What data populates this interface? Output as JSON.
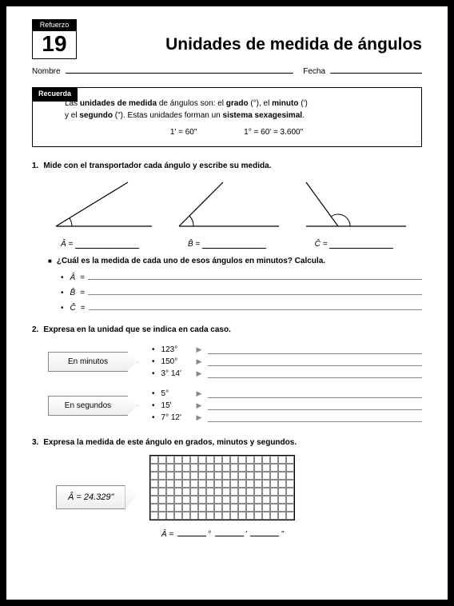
{
  "header": {
    "tab_label": "Refuerzo",
    "number": "19",
    "title": "Unidades de medida de ángulos",
    "name_label": "Nombre",
    "date_label": "Fecha"
  },
  "recuerda": {
    "tab": "Recuerda",
    "line1_a": "Las ",
    "line1_b": "unidades de medida",
    "line1_c": " de ángulos son: el ",
    "line1_d": "grado",
    "line1_e": " (°), el ",
    "line1_f": "minuto",
    "line1_g": " (')",
    "line2_a": "y el ",
    "line2_b": "segundo",
    "line2_c": " (\"). Estas unidades forman un ",
    "line2_d": "sistema sexagesimal",
    "line2_e": ".",
    "formula1": "1' = 60\"",
    "formula2": "1° = 60' = 3.600\""
  },
  "q1": {
    "num": "1.",
    "text": "Mide con el transportador cada ángulo y escribe su medida.",
    "angles": [
      {
        "label": "Â",
        "eq": "="
      },
      {
        "label": "B̂",
        "eq": "="
      },
      {
        "label": "Ĉ",
        "eq": "="
      }
    ],
    "subq": "¿Cuál es la medida de cada uno de esos ángulos en minutos? Calcula.",
    "vars": [
      {
        "v": "Â",
        "eq": "="
      },
      {
        "v": "B̂",
        "eq": "="
      },
      {
        "v": "Ĉ",
        "eq": "="
      }
    ]
  },
  "q2": {
    "num": "2.",
    "text": "Expresa en la unidad que se indica en cada caso.",
    "groups": [
      {
        "label": "En minutos",
        "items": [
          "123°",
          "150°",
          "3° 14'"
        ]
      },
      {
        "label": "En segundos",
        "items": [
          "5°",
          "15'",
          "7° 12'"
        ]
      }
    ]
  },
  "q3": {
    "num": "3.",
    "text": "Expresa la medida de este ángulo en grados, minutos y segundos.",
    "box": "Â = 24.329\"",
    "answer_label": "Â =",
    "units": [
      "°",
      "'",
      "\""
    ]
  },
  "style": {
    "page_bg": "#ffffff",
    "border": "#000000",
    "line_color": "#888888",
    "font_base": 11
  }
}
